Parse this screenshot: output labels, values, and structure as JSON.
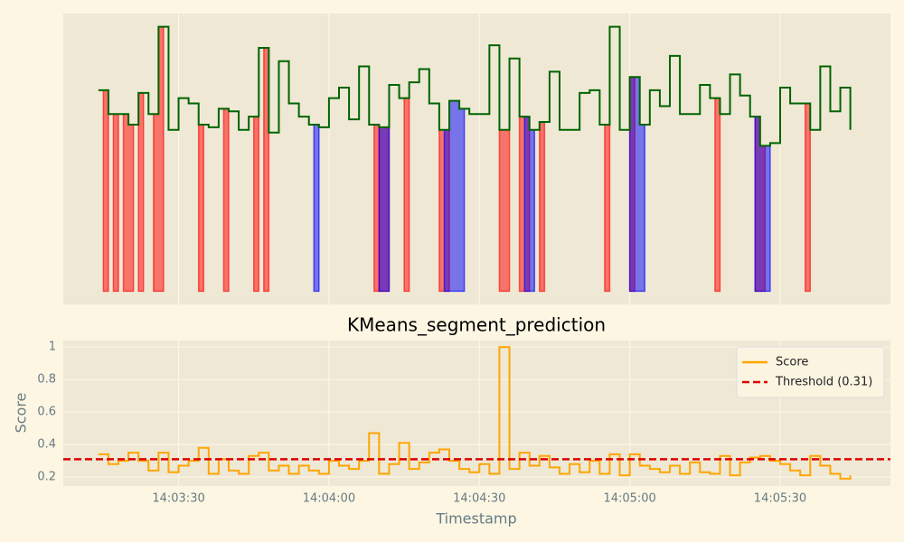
{
  "chart_data": [
    {
      "type": "line",
      "step": true,
      "x": [
        "14:03:14",
        "14:03:16",
        "14:03:18",
        "14:03:20",
        "14:03:22",
        "14:03:24",
        "14:03:26",
        "14:03:28",
        "14:03:30",
        "14:03:32",
        "14:03:34",
        "14:03:36",
        "14:03:38",
        "14:03:40",
        "14:03:42",
        "14:03:44",
        "14:03:46",
        "14:03:48",
        "14:03:50",
        "14:03:52",
        "14:03:54",
        "14:03:56",
        "14:03:58",
        "14:04:00",
        "14:04:02",
        "14:04:04",
        "14:04:06",
        "14:04:08",
        "14:04:10",
        "14:04:12",
        "14:04:14",
        "14:04:16",
        "14:04:18",
        "14:04:20",
        "14:04:22",
        "14:04:24",
        "14:04:26",
        "14:04:28",
        "14:04:30",
        "14:04:32",
        "14:04:34",
        "14:04:36",
        "14:04:38",
        "14:04:40",
        "14:04:42",
        "14:04:44",
        "14:04:46",
        "14:04:48",
        "14:04:50",
        "14:04:52",
        "14:04:54",
        "14:04:56",
        "14:04:58",
        "14:05:00",
        "14:05:02",
        "14:05:04",
        "14:05:06",
        "14:05:08",
        "14:05:10",
        "14:05:12",
        "14:05:14",
        "14:05:16",
        "14:05:18",
        "14:05:20",
        "14:05:22",
        "14:05:24",
        "14:05:26",
        "14:05:28",
        "14:05:30",
        "14:05:32",
        "14:05:34",
        "14:05:36",
        "14:05:38",
        "14:05:40",
        "14:05:42",
        "14:05:44"
      ],
      "series": [
        {
          "color": "#006400",
          "values": [
            0.76,
            0.67,
            0.67,
            0.63,
            0.75,
            0.67,
            1.0,
            0.61,
            0.73,
            0.71,
            0.63,
            0.62,
            0.69,
            0.68,
            0.61,
            0.66,
            0.92,
            0.6,
            0.87,
            0.71,
            0.66,
            0.63,
            0.62,
            0.73,
            0.77,
            0.65,
            0.85,
            0.63,
            0.62,
            0.78,
            0.73,
            0.79,
            0.84,
            0.71,
            0.61,
            0.72,
            0.69,
            0.67,
            0.67,
            0.93,
            0.61,
            0.88,
            0.66,
            0.61,
            0.64,
            0.83,
            0.61,
            0.61,
            0.75,
            0.76,
            0.63,
            1.0,
            0.61,
            0.81,
            0.63,
            0.76,
            0.7,
            0.89,
            0.67,
            0.67,
            0.78,
            0.73,
            0.67,
            0.82,
            0.74,
            0.66,
            0.55,
            0.56,
            0.77,
            0.71,
            0.71,
            0.61,
            0.85,
            0.68,
            0.77,
            0.61
          ]
        }
      ],
      "regions": [
        {
          "color": "#ff0000",
          "spans": [
            [
              "14:03:15",
              "14:03:16"
            ],
            [
              "14:03:17",
              "14:03:18"
            ],
            [
              "14:03:19",
              "14:03:21"
            ],
            [
              "14:03:22",
              "14:03:23"
            ],
            [
              "14:03:25",
              "14:03:27"
            ],
            [
              "14:03:34",
              "14:03:35"
            ],
            [
              "14:03:39",
              "14:03:40"
            ],
            [
              "14:03:45",
              "14:03:46"
            ],
            [
              "14:03:47",
              "14:03:48"
            ],
            [
              "14:04:09",
              "14:04:10"
            ],
            [
              "14:04:10",
              "14:04:12"
            ],
            [
              "14:04:15",
              "14:04:16"
            ],
            [
              "14:04:22",
              "14:04:24"
            ],
            [
              "14:04:34",
              "14:04:36"
            ],
            [
              "14:04:38",
              "14:04:40"
            ],
            [
              "14:04:42",
              "14:04:43"
            ],
            [
              "14:04:55",
              "14:04:56"
            ],
            [
              "14:05:00",
              "14:05:01"
            ],
            [
              "14:05:17",
              "14:05:18"
            ],
            [
              "14:05:25",
              "14:05:27"
            ],
            [
              "14:05:35",
              "14:05:36"
            ]
          ]
        },
        {
          "color": "#0000ff",
          "spans": [
            [
              "14:03:57",
              "14:03:58"
            ],
            [
              "14:04:10",
              "14:04:12"
            ],
            [
              "14:04:23",
              "14:04:27"
            ],
            [
              "14:04:39",
              "14:04:41"
            ],
            [
              "14:05:00",
              "14:05:03"
            ],
            [
              "14:05:25",
              "14:05:28"
            ]
          ]
        }
      ],
      "xlim": [
        "14:03:07",
        "14:05:52"
      ],
      "ylim": [
        -0.05,
        1.05
      ],
      "xticks": [
        "14:03:30",
        "14:04:00",
        "14:04:30",
        "14:05:00",
        "14:05:30"
      ],
      "grid": true
    },
    {
      "type": "line",
      "step": true,
      "title": "KMeans_segment_prediction",
      "xlabel": "Timestamp",
      "ylabel": "Score",
      "x": [
        "14:03:14",
        "14:03:16",
        "14:03:18",
        "14:03:20",
        "14:03:22",
        "14:03:24",
        "14:03:26",
        "14:03:28",
        "14:03:30",
        "14:03:32",
        "14:03:34",
        "14:03:36",
        "14:03:38",
        "14:03:40",
        "14:03:42",
        "14:03:44",
        "14:03:46",
        "14:03:48",
        "14:03:50",
        "14:03:52",
        "14:03:54",
        "14:03:56",
        "14:03:58",
        "14:04:00",
        "14:04:02",
        "14:04:04",
        "14:04:06",
        "14:04:08",
        "14:04:10",
        "14:04:12",
        "14:04:14",
        "14:04:16",
        "14:04:18",
        "14:04:20",
        "14:04:22",
        "14:04:24",
        "14:04:26",
        "14:04:28",
        "14:04:30",
        "14:04:32",
        "14:04:34",
        "14:04:36",
        "14:04:38",
        "14:04:40",
        "14:04:42",
        "14:04:44",
        "14:04:46",
        "14:04:48",
        "14:04:50",
        "14:04:52",
        "14:04:54",
        "14:04:56",
        "14:04:58",
        "14:05:00",
        "14:05:02",
        "14:05:04",
        "14:05:06",
        "14:05:08",
        "14:05:10",
        "14:05:12",
        "14:05:14",
        "14:05:16",
        "14:05:18",
        "14:05:20",
        "14:05:22",
        "14:05:24",
        "14:05:26",
        "14:05:28",
        "14:05:30",
        "14:05:32",
        "14:05:34",
        "14:05:36",
        "14:05:38",
        "14:05:40",
        "14:05:42",
        "14:05:44"
      ],
      "series": [
        {
          "name": "Score",
          "color": "#ffa500",
          "values": [
            0.34,
            0.28,
            0.3,
            0.35,
            0.3,
            0.24,
            0.35,
            0.23,
            0.27,
            0.3,
            0.38,
            0.22,
            0.31,
            0.24,
            0.22,
            0.33,
            0.35,
            0.24,
            0.27,
            0.22,
            0.27,
            0.24,
            0.22,
            0.3,
            0.27,
            0.25,
            0.3,
            0.47,
            0.22,
            0.28,
            0.41,
            0.25,
            0.29,
            0.35,
            0.37,
            0.3,
            0.25,
            0.23,
            0.28,
            0.22,
            1.0,
            0.25,
            0.35,
            0.27,
            0.33,
            0.26,
            0.22,
            0.28,
            0.23,
            0.3,
            0.22,
            0.34,
            0.21,
            0.34,
            0.27,
            0.25,
            0.23,
            0.27,
            0.22,
            0.29,
            0.23,
            0.22,
            0.33,
            0.21,
            0.29,
            0.32,
            0.33,
            0.3,
            0.28,
            0.24,
            0.21,
            0.33,
            0.27,
            0.22,
            0.19,
            0.21
          ]
        }
      ],
      "threshold": {
        "name": "Threshold (0.31)",
        "value": 0.31,
        "color": "#dd0000"
      },
      "xlim": [
        "14:03:07",
        "14:05:52"
      ],
      "ylim": [
        0.145,
        1.04
      ],
      "xticks": [
        "14:03:30",
        "14:04:00",
        "14:04:30",
        "14:05:00",
        "14:05:30"
      ],
      "yticks": [
        0.2,
        0.4,
        0.6,
        0.8,
        1.0
      ],
      "grid": true,
      "legend": "upper right"
    }
  ]
}
